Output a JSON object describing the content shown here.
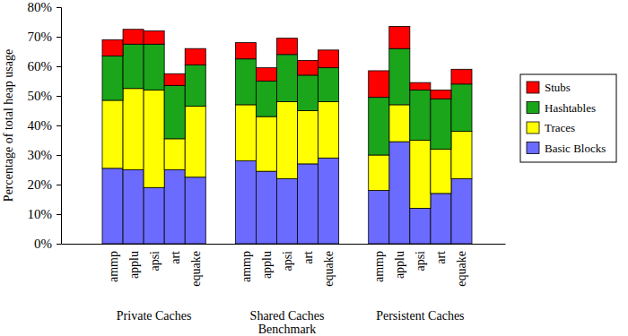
{
  "chart_data": {
    "type": "bar",
    "stacked": true,
    "legend": "right",
    "x_label": "Benchmark",
    "y_label": "Percentage of total heap usage",
    "groups": [
      "Private Caches",
      "Shared Caches",
      "Persistent Caches"
    ],
    "categories": [
      "ammp",
      "applu",
      "apsi",
      "art",
      "equake",
      "ammp",
      "applu",
      "apsi",
      "art",
      "equake",
      "ammp",
      "applu",
      "apsi",
      "art",
      "equake"
    ],
    "ylim": [
      0,
      80
    ],
    "yticks": [
      {
        "value": 0,
        "label": "0%"
      },
      {
        "value": 10,
        "label": "10%"
      },
      {
        "value": 20,
        "label": "20%"
      },
      {
        "value": 30,
        "label": "30%"
      },
      {
        "value": 40,
        "label": "40%"
      },
      {
        "value": 50,
        "label": "50%"
      },
      {
        "value": 60,
        "label": "60%"
      },
      {
        "value": 70,
        "label": "70%"
      },
      {
        "value": 80,
        "label": "80%"
      }
    ],
    "series": [
      {
        "name": "Basic Blocks",
        "color": "#6b6bff",
        "values": [
          25.5,
          25,
          19,
          25,
          22.5,
          28,
          24.5,
          22,
          27,
          29,
          18,
          34.5,
          12,
          17,
          22
        ]
      },
      {
        "name": "Traces",
        "color": "#ffff00",
        "values": [
          23,
          27.5,
          33,
          10.5,
          24,
          19,
          18.5,
          26,
          18,
          19,
          12,
          12.5,
          23,
          15,
          16
        ]
      },
      {
        "name": "Hashtables",
        "color": "#1aa51a",
        "values": [
          15,
          15,
          15.5,
          18,
          14,
          15.5,
          12,
          16,
          12,
          11.5,
          19.5,
          19,
          17,
          17,
          16
        ]
      },
      {
        "name": "Stubs",
        "color": "#ff0000",
        "values": [
          5.5,
          5,
          4.5,
          4,
          5.5,
          5.5,
          4.5,
          5.5,
          5,
          6,
          9,
          7.5,
          2.5,
          3,
          5
        ]
      }
    ]
  }
}
